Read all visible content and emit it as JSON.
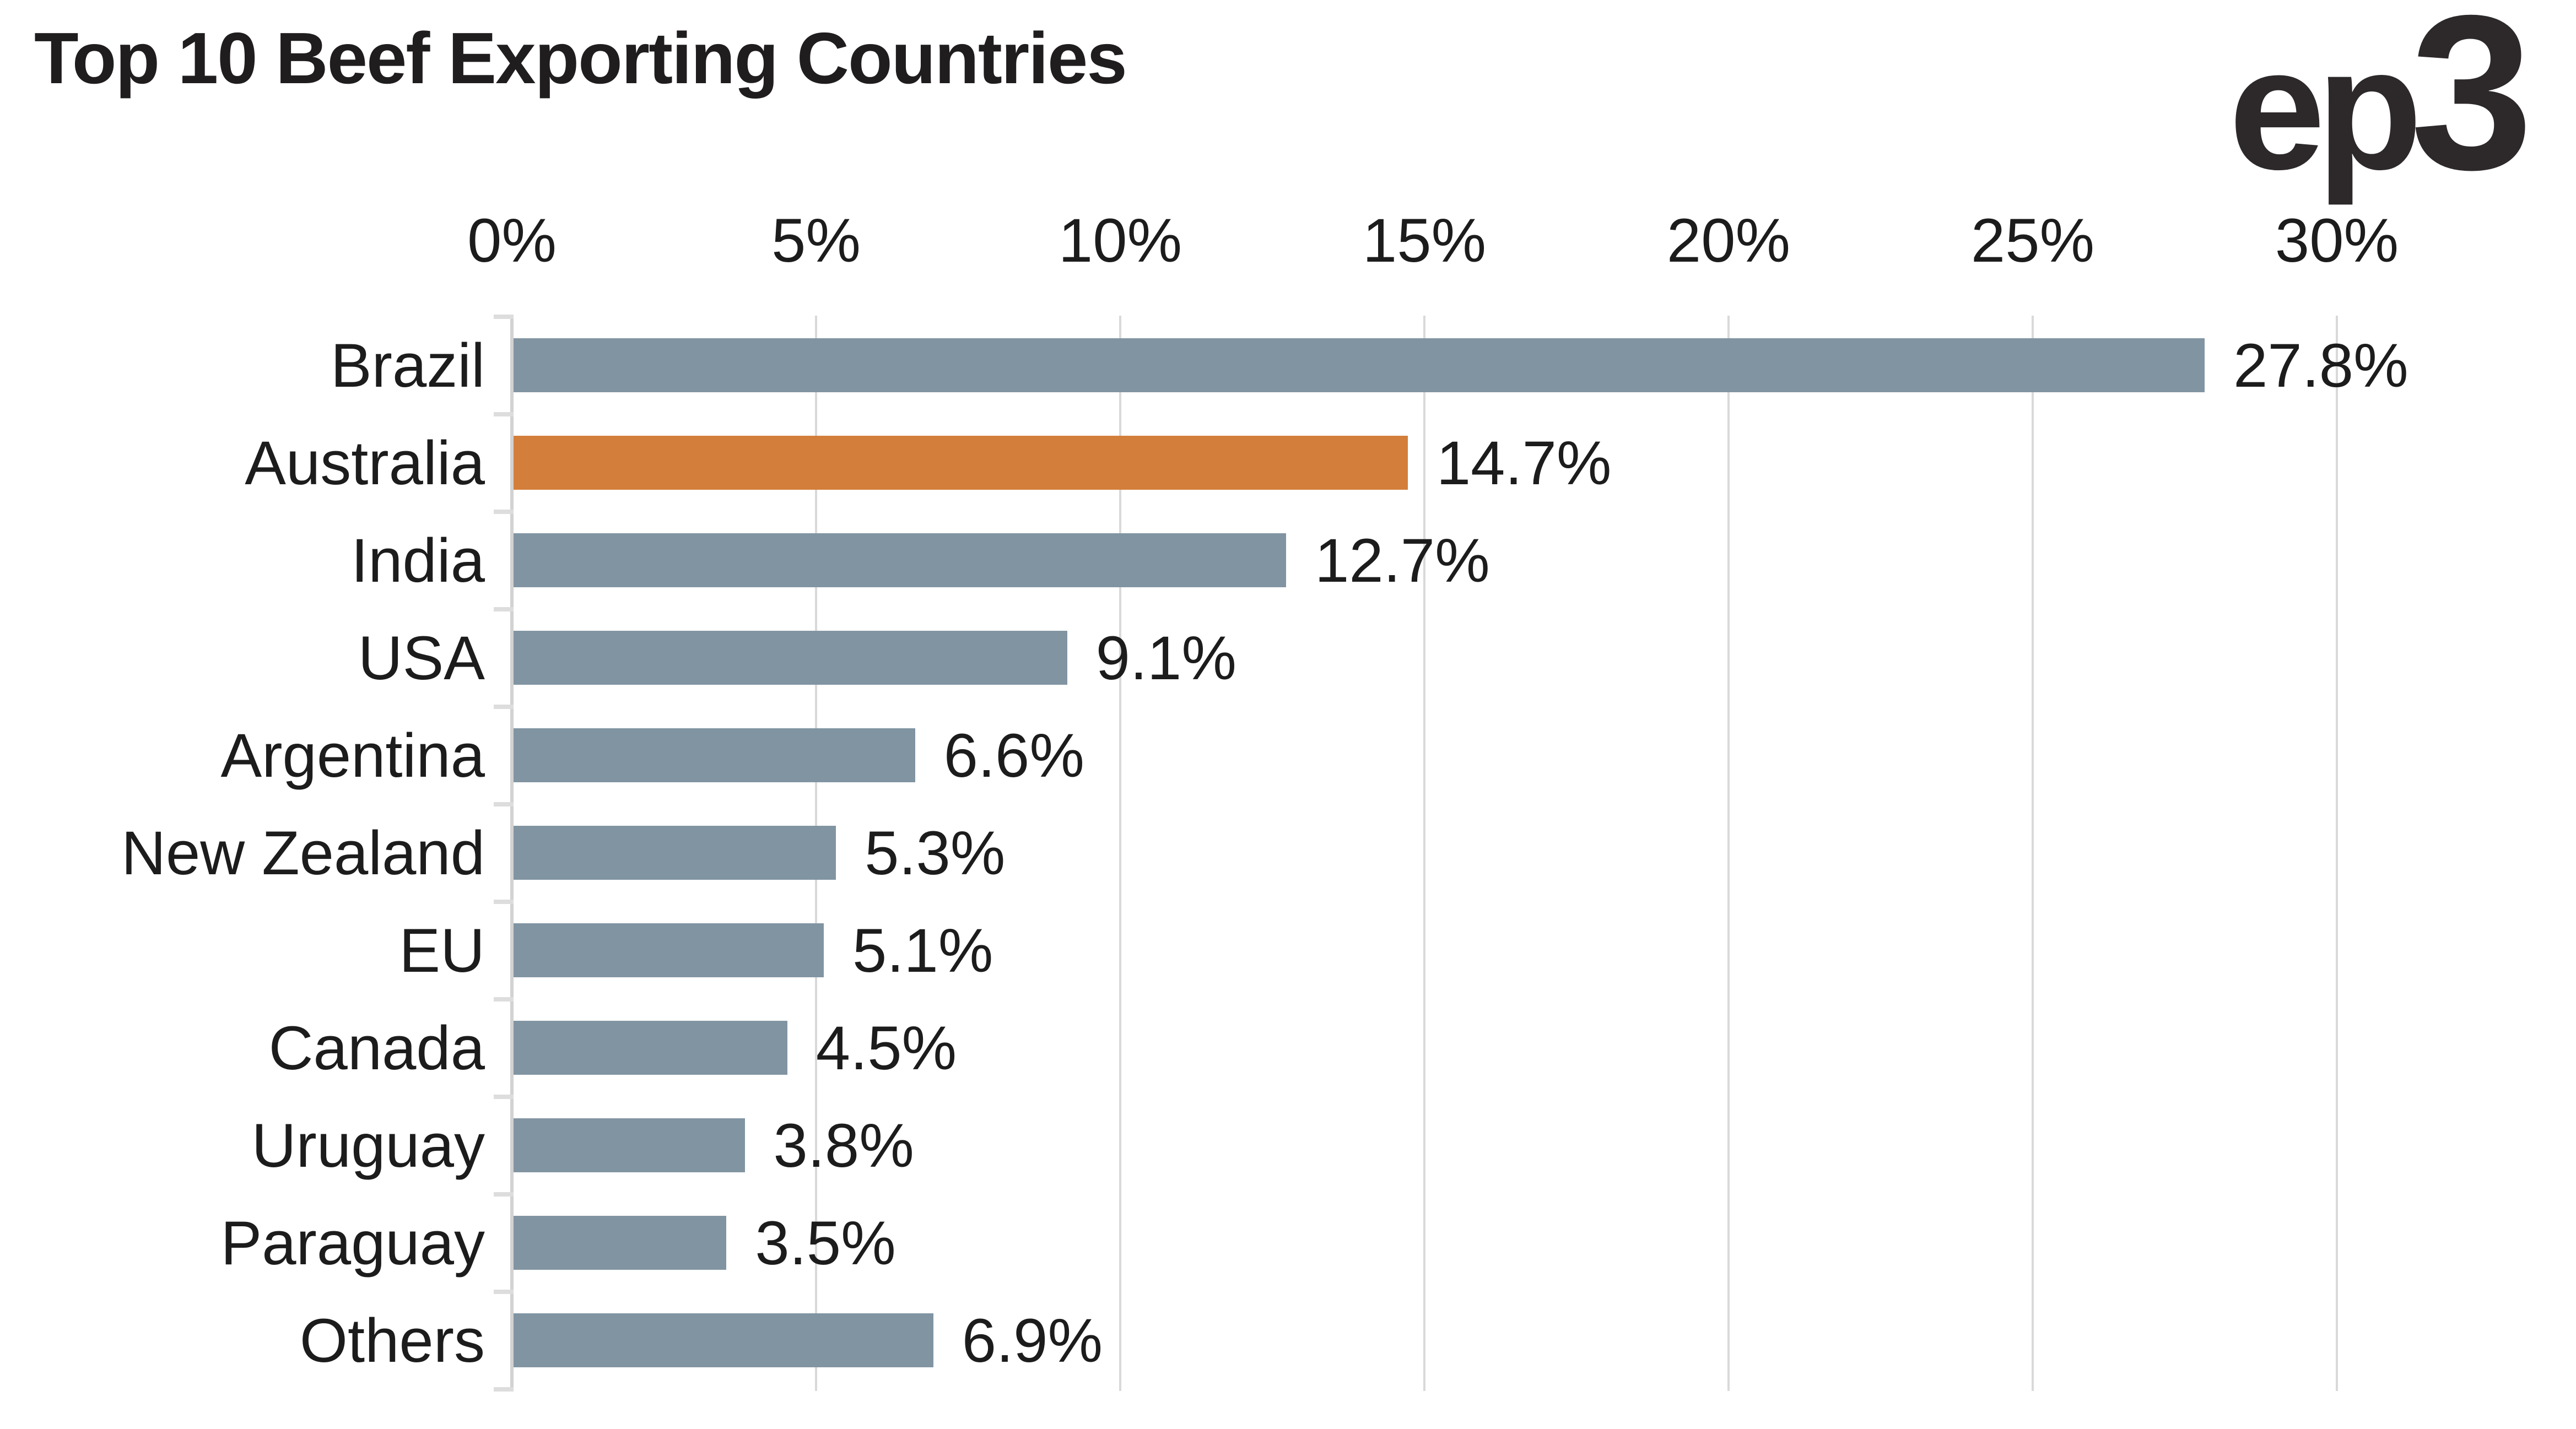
{
  "title": "Top 10 Beef Exporting Countries",
  "logo": {
    "main": "ep",
    "digit": "3"
  },
  "colors": {
    "bar": "#8194a2",
    "highlight": "#d37e3b",
    "gridline": "#d9d9d9",
    "axis_line": "#d2d2d2",
    "tick": "#dddddd",
    "text": "#1c1c1c",
    "title_text": "#201d1e",
    "logo_text": "#2d292a",
    "background": "#ffffff"
  },
  "chart_data": {
    "type": "bar",
    "orientation": "horizontal",
    "title": "Top 10 Beef Exporting Countries",
    "xlabel": "",
    "ylabel": "",
    "categories": [
      "Brazil",
      "Australia",
      "India",
      "USA",
      "Argentina",
      "New Zealand",
      "EU",
      "Canada",
      "Uruguay",
      "Paraguay",
      "Others"
    ],
    "values": [
      27.8,
      14.7,
      12.7,
      9.1,
      6.6,
      5.3,
      5.1,
      4.5,
      3.8,
      3.5,
      6.9
    ],
    "value_labels": [
      "27.8%",
      "14.7%",
      "12.7%",
      "9.1%",
      "6.6%",
      "5.3%",
      "5.1%",
      "4.5%",
      "3.8%",
      "3.5%",
      "6.9%"
    ],
    "highlighted_category": "Australia",
    "highlight_index": 1,
    "x_axis": {
      "position": "top",
      "min": 0,
      "max": 30,
      "tick_values": [
        0,
        5,
        10,
        15,
        20,
        25,
        30
      ],
      "tick_labels": [
        "0%",
        "5%",
        "10%",
        "15%",
        "20%",
        "25%",
        "30%"
      ]
    },
    "grid": true,
    "legend": false,
    "data_labels": "outside-end"
  }
}
